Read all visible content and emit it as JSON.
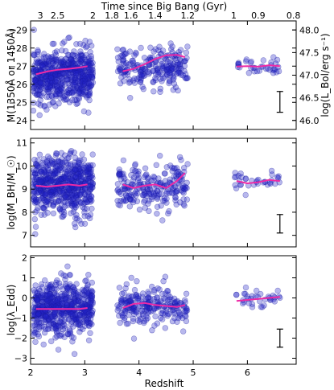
{
  "chart_data": [
    {
      "type": "scatter",
      "panel": "magnitude",
      "ylabel": "M(1350Å or 1450Å)",
      "ylabel_right": "log(L_Bol/erg s⁻¹)",
      "xlim": [
        2,
        6.9
      ],
      "ylim": [
        -23.5,
        -29.5
      ],
      "y_inverted": true,
      "yticks": [
        -29,
        -28,
        -27,
        -26,
        -25,
        -24
      ],
      "ytick_labels": [
        "−29",
        "−28",
        "−27",
        "−26",
        "−25",
        "−24"
      ],
      "yticks_right": [
        48.0,
        47.5,
        47.0,
        46.5,
        46.0
      ],
      "ytick_labels_right": [
        "48.0",
        "47.5",
        "47.0",
        "46.5",
        "46.0"
      ],
      "scatter_groups": [
        {
          "x_range": [
            2.05,
            3.15
          ],
          "y_center": -26.5,
          "y_spread": 0.8,
          "count": 600
        },
        {
          "x_range": [
            3.6,
            4.9
          ],
          "y_center": -26.95,
          "y_spread": 0.6,
          "count": 230
        },
        {
          "x_range": [
            5.75,
            6.6
          ],
          "y_center": -26.95,
          "y_spread": 0.35,
          "count": 35
        }
      ],
      "series": [
        {
          "values_x": [
            2.1,
            2.3,
            2.5,
            2.7,
            2.9,
            3.05
          ],
          "values_y": [
            -26.55,
            -26.7,
            -26.8,
            -26.85,
            -26.92,
            -27.0
          ]
        },
        {
          "values_x": [
            3.7,
            3.9,
            4.1,
            4.3,
            4.5,
            4.7,
            4.85
          ],
          "values_y": [
            -26.72,
            -26.85,
            -27.1,
            -27.4,
            -27.6,
            -27.62,
            -27.5
          ]
        },
        {
          "values_x": [
            5.8,
            6.0,
            6.2,
            6.4,
            6.6
          ],
          "values_y": [
            -26.98,
            -27.0,
            -26.97,
            -27.05,
            -27.0
          ]
        }
      ],
      "error_bar": {
        "x": 6.6,
        "y_low": -24.45,
        "y_high": -25.6
      }
    },
    {
      "type": "scatter",
      "panel": "black-hole-mass",
      "ylabel": "log(M_BH/M_☉)",
      "xlim": [
        2,
        6.9
      ],
      "ylim": [
        6.5,
        11.2
      ],
      "yticks": [
        7,
        8,
        9,
        10,
        11
      ],
      "ytick_labels": [
        "7",
        "8",
        "9",
        "10",
        "11"
      ],
      "scatter_groups": [
        {
          "x_range": [
            2.05,
            3.15
          ],
          "y_center": 9.15,
          "y_spread": 0.7,
          "count": 600
        },
        {
          "x_range": [
            3.6,
            4.9
          ],
          "y_center": 9.1,
          "y_spread": 0.55,
          "count": 230
        },
        {
          "x_range": [
            5.75,
            6.6
          ],
          "y_center": 9.3,
          "y_spread": 0.25,
          "count": 35
        }
      ],
      "series": [
        {
          "values_x": [
            2.1,
            2.3,
            2.5,
            2.7,
            2.9,
            3.05
          ],
          "values_y": [
            9.15,
            9.1,
            9.15,
            9.2,
            9.15,
            9.2
          ]
        },
        {
          "values_x": [
            3.7,
            3.9,
            4.1,
            4.3,
            4.5,
            4.7,
            4.85
          ],
          "values_y": [
            9.2,
            9.05,
            9.15,
            9.2,
            9.05,
            9.35,
            9.7
          ]
        },
        {
          "values_x": [
            5.8,
            6.0,
            6.2,
            6.4,
            6.6
          ],
          "values_y": [
            9.35,
            9.25,
            9.3,
            9.4,
            9.35
          ]
        }
      ],
      "error_bar": {
        "x": 6.6,
        "y_low": 7.1,
        "y_high": 7.9
      }
    },
    {
      "type": "scatter",
      "panel": "eddington-ratio",
      "ylabel": "log(λ_Edd)",
      "xlabel": "Redshift",
      "xlim": [
        2,
        6.9
      ],
      "ylim": [
        -3.3,
        2.1
      ],
      "yticks": [
        -3,
        -2,
        -1,
        0,
        1,
        2
      ],
      "ytick_labels": [
        "−3",
        "−2",
        "−1",
        "0",
        "1",
        "2"
      ],
      "xticks": [
        2,
        3,
        4,
        5,
        6
      ],
      "xtick_labels": [
        "2",
        "3",
        "4",
        "5",
        "6"
      ],
      "scatter_groups": [
        {
          "x_range": [
            2.05,
            3.15
          ],
          "y_center": -0.55,
          "y_spread": 0.75,
          "count": 600
        },
        {
          "x_range": [
            3.6,
            4.9
          ],
          "y_center": -0.35,
          "y_spread": 0.55,
          "count": 230
        },
        {
          "x_range": [
            5.75,
            6.6
          ],
          "y_center": -0.05,
          "y_spread": 0.3,
          "count": 35
        }
      ],
      "series": [
        {
          "values_x": [
            2.1,
            2.3,
            2.5,
            2.7,
            2.9,
            3.05
          ],
          "values_y": [
            -0.55,
            -0.55,
            -0.55,
            -0.55,
            -0.55,
            -0.5
          ]
        },
        {
          "values_x": [
            3.7,
            3.9,
            4.1,
            4.3,
            4.5,
            4.7,
            4.85
          ],
          "values_y": [
            -0.5,
            -0.3,
            -0.25,
            -0.35,
            -0.4,
            -0.45,
            -0.35
          ]
        },
        {
          "values_x": [
            5.8,
            6.0,
            6.2,
            6.4,
            6.6
          ],
          "values_y": [
            -0.15,
            -0.1,
            -0.05,
            0.0,
            0.05
          ]
        }
      ],
      "error_bar": {
        "x": 6.6,
        "y_low": -2.45,
        "y_high": -1.55
      }
    }
  ],
  "top_axis": {
    "label": "Time since Big Bang (Gyr)",
    "ticks": [
      {
        "label": "3",
        "redshift": 2.18
      },
      {
        "label": "2.5",
        "redshift": 2.5
      },
      {
        "label": "2",
        "redshift": 3.15
      },
      {
        "label": "1.8",
        "redshift": 3.5
      },
      {
        "label": "1.6",
        "redshift": 3.85
      },
      {
        "label": "1.4",
        "redshift": 4.3
      },
      {
        "label": "1.2",
        "redshift": 4.9
      },
      {
        "label": "1",
        "redshift": 5.75
      },
      {
        "label": "0.9",
        "redshift": 6.2
      },
      {
        "label": "0.8",
        "redshift": 6.85
      }
    ]
  },
  "colors": {
    "points": "#2323c8",
    "points_edge": "#1a1aa0",
    "trend": "#ee2aa6",
    "error_bar": "#000000",
    "frame": "#000000"
  }
}
